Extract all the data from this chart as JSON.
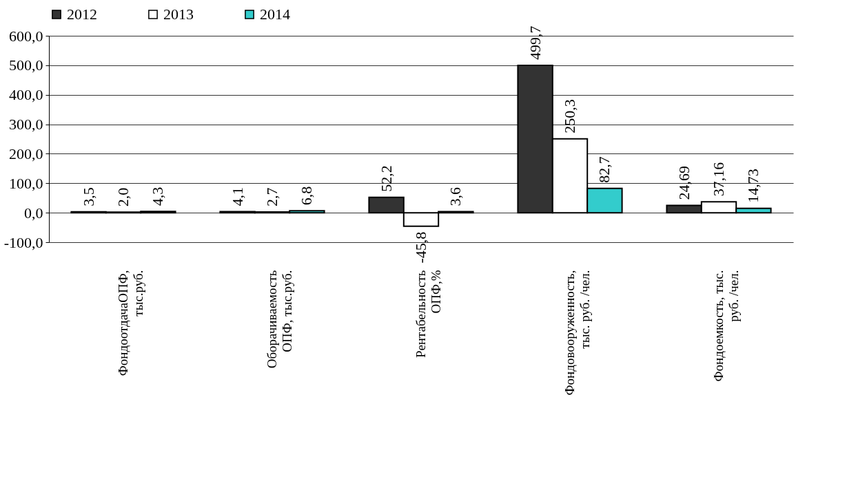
{
  "chart_data": {
    "type": "bar",
    "categories": [
      "ФондоотдачаОПФ,\nтыс.руб.",
      "Оборачиваемость\nОПФ, тыс.руб.",
      "Рентабельность\nОПФ,%",
      "Фондовооруженность,\nтыс. руб. /чел.",
      "Фондоемкость,  тыс.\nруб. /чел."
    ],
    "series": [
      {
        "name": "2012",
        "color": "#333333",
        "values": [
          3.5,
          4.1,
          52.2,
          499.7,
          24.69
        ],
        "value_labels": [
          "3,5",
          "4,1",
          "52,2",
          "499,7",
          "24,69"
        ]
      },
      {
        "name": "2013",
        "color": "#ffffff",
        "values": [
          2.0,
          2.7,
          -45.8,
          250.3,
          37.16
        ],
        "value_labels": [
          "2,0",
          "2,7",
          "-45,8",
          "250,3",
          "37,16"
        ]
      },
      {
        "name": "2014",
        "color": "#33cccc",
        "values": [
          4.3,
          6.8,
          3.6,
          82.7,
          14.73
        ],
        "value_labels": [
          "4,3",
          "6,8",
          "3,6",
          "82,7",
          "14,73"
        ]
      }
    ],
    "ylim": [
      -100,
      600
    ],
    "yticks": [
      {
        "value": -100,
        "label": "-100,0"
      },
      {
        "value": 0,
        "label": "0,0"
      },
      {
        "value": 100,
        "label": "100,0"
      },
      {
        "value": 200,
        "label": "200,0"
      },
      {
        "value": 300,
        "label": "300,0"
      },
      {
        "value": 400,
        "label": "400,0"
      },
      {
        "value": 500,
        "label": "500,0"
      },
      {
        "value": 600,
        "label": "600,0"
      }
    ],
    "grid": "y",
    "legend": "top"
  }
}
